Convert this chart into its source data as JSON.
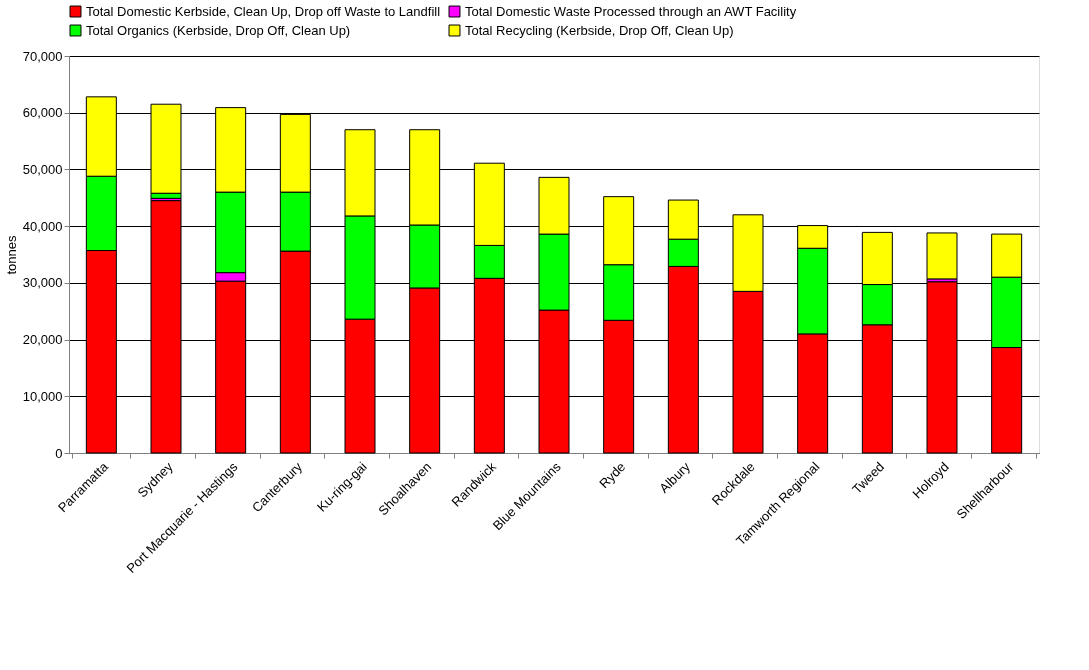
{
  "chart_data": {
    "type": "bar",
    "stacked": true,
    "ylabel": "tonnes",
    "categories": [
      "Parramatta",
      "Sydney",
      "Port Macquarie - Hastings",
      "Canterbury",
      "Ku-ring-gai",
      "Shoalhaven",
      "Randwick",
      "Blue Mountains",
      "Ryde",
      "Albury",
      "Rockdale",
      "Tamworth Regional",
      "Tweed",
      "Holroyd",
      "Shellharbour"
    ],
    "series": [
      {
        "name": "Total Domestic Kerbside, Clean Up, Drop off Waste to Landfill",
        "color": "#ff0000",
        "values": [
          35700,
          44500,
          30300,
          35600,
          23600,
          29100,
          30800,
          25200,
          23400,
          32900,
          28500,
          21000,
          22600,
          30200,
          18600
        ]
      },
      {
        "name": "Total Domestic Waste Processed through an AWT Facility",
        "color": "#ff00ff",
        "values": [
          0,
          400,
          1500,
          0,
          0,
          0,
          0,
          0,
          0,
          0,
          0,
          0,
          0,
          500,
          0
        ]
      },
      {
        "name": "Total Organics (Kerbside, Drop Off, Clean Up)",
        "color": "#00ff00",
        "values": [
          13100,
          900,
          14200,
          10400,
          18200,
          11100,
          5800,
          13400,
          9800,
          4800,
          0,
          15100,
          7100,
          0,
          12400
        ]
      },
      {
        "name": "Total Recycling (Kerbside, Drop Off, Clean Up)",
        "color": "#ffff00",
        "values": [
          14000,
          15700,
          14900,
          13700,
          15200,
          16800,
          14500,
          10000,
          12000,
          6900,
          13500,
          4000,
          9200,
          8100,
          7600
        ]
      }
    ],
    "ylim": [
      0,
      70000
    ],
    "yticks": [
      0,
      {
        "value": 10000,
        "label": "10,000"
      },
      {
        "value": 20000,
        "label": "20,000"
      },
      {
        "value": 30000,
        "label": "30,000"
      },
      {
        "value": 40000,
        "label": "40,000"
      },
      {
        "value": 50000,
        "label": "50,000"
      },
      {
        "value": 60000,
        "label": "60,000"
      },
      {
        "value": 70000,
        "label": "70,000"
      }
    ],
    "grid": "y",
    "legend": "top"
  }
}
